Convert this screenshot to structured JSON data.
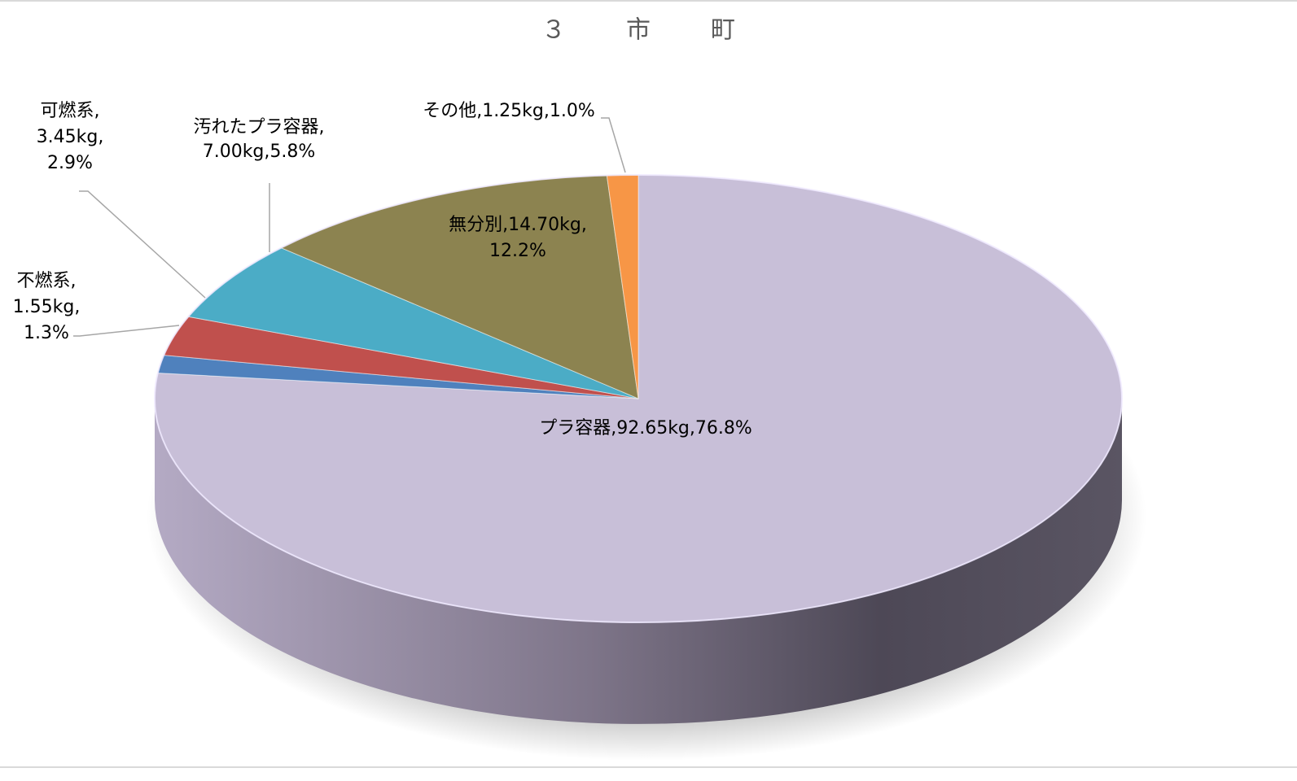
{
  "chart_data": {
    "type": "pie",
    "title": "３　市　町",
    "values": [
      92.65,
      1.55,
      3.45,
      7.0,
      14.7,
      1.25
    ],
    "value_labels": [
      [
        "プラ容器,92.65kg,76.8%"
      ],
      [
        "不燃系,",
        "1.55kg,",
        "1.3%"
      ],
      [
        "可燃系,",
        "3.45kg,",
        "2.9%"
      ],
      [
        "汚れたプラ容器,",
        "7.00kg,5.8%"
      ],
      [
        "無分別,14.70kg,",
        "12.2%"
      ],
      [
        "その他,1.25kg,1.0%"
      ]
    ],
    "colors": [
      "#c8bfd8",
      "#4f81bd",
      "#c0504d",
      "#4bacc6",
      "#8c8350",
      "#f79646"
    ],
    "start_angle": 0,
    "direction": "clockwise"
  }
}
